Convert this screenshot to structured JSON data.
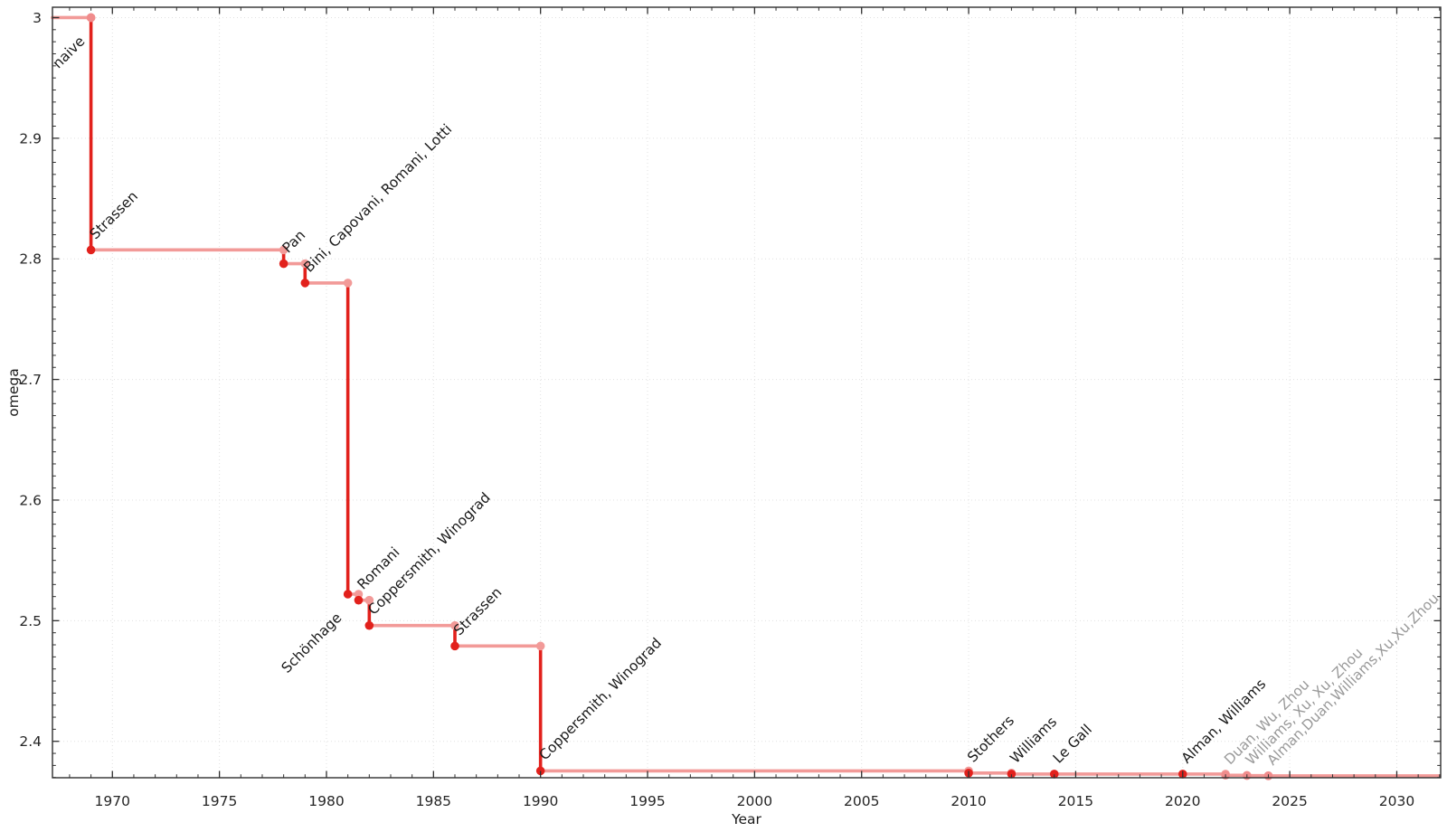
{
  "figure": {
    "background": "#ffffff"
  },
  "chart_data": {
    "type": "line",
    "step_mode": "post",
    "title": "",
    "xlabel": "Year",
    "ylabel": "omega",
    "xlim": [
      1967.2,
      2032.05
    ],
    "ylim": [
      2.3698,
      3.0086
    ],
    "grid": {
      "show": true,
      "style": "dotted",
      "on": "major"
    },
    "legend": "none",
    "x_ticks": {
      "major": [
        1970,
        1975,
        1980,
        1985,
        1990,
        1995,
        2000,
        2005,
        2010,
        2015,
        2020,
        2025,
        2030
      ],
      "major_labels": [
        "1970",
        "1975",
        "1980",
        "1985",
        "1990",
        "1995",
        "2000",
        "2005",
        "2010",
        "2015",
        "2020",
        "2025",
        "2030"
      ],
      "minor_step": 1
    },
    "y_ticks": {
      "major": [
        2.4,
        2.5,
        2.6,
        2.7,
        2.8,
        2.9,
        3.0
      ],
      "major_labels": [
        "2.4",
        "2.5",
        "2.6",
        "2.7",
        "2.8",
        "2.9",
        "3"
      ],
      "minor_step": 0.01
    },
    "records": [
      {
        "year": 1969,
        "omega": 3.0,
        "label": "naive",
        "point_style": "light",
        "label_color": "dark",
        "label_pos": "below-left"
      },
      {
        "year": 1969,
        "omega": 2.8074,
        "label": "Strassen",
        "point_style": "dark",
        "label_color": "dark",
        "label_pos": "above-right"
      },
      {
        "year": 1978,
        "omega": 2.796,
        "label": "Pan",
        "point_style": "dark",
        "label_color": "dark",
        "label_pos": "above-right"
      },
      {
        "year": 1979,
        "omega": 2.78,
        "label": "Bini, Capovani, Romani, Lotti",
        "point_style": "dark",
        "label_color": "dark",
        "label_pos": "above-right"
      },
      {
        "year": 1981,
        "omega": 2.522,
        "label": "Schönhage",
        "point_style": "dark",
        "label_color": "dark",
        "label_pos": "below-left"
      },
      {
        "year": 1981.5,
        "omega": 2.517,
        "label": "Romani",
        "point_style": "dark",
        "label_color": "dark",
        "label_pos": "above-right"
      },
      {
        "year": 1982,
        "omega": 2.496,
        "label": "Coppersmith, Winograd",
        "point_style": "dark",
        "label_color": "dark",
        "label_pos": "above-right"
      },
      {
        "year": 1986,
        "omega": 2.479,
        "label": "Strassen",
        "point_style": "dark",
        "label_color": "dark",
        "label_pos": "above-right"
      },
      {
        "year": 1990,
        "omega": 2.3755,
        "label": "Coppersmith, Winograd",
        "point_style": "dark",
        "label_color": "dark",
        "label_pos": "above-right"
      },
      {
        "year": 2010,
        "omega": 2.3737,
        "label": "Stothers",
        "point_style": "dark",
        "label_color": "dark",
        "label_pos": "above-right"
      },
      {
        "year": 2012,
        "omega": 2.37287,
        "label": "Williams",
        "point_style": "dark",
        "label_color": "dark",
        "label_pos": "above-right"
      },
      {
        "year": 2014,
        "omega": 2.372864,
        "label": "Le Gall",
        "point_style": "dark",
        "label_color": "dark",
        "label_pos": "above-right"
      },
      {
        "year": 2020,
        "omega": 2.37286,
        "label": "Alman, Williams",
        "point_style": "dark",
        "label_color": "dark",
        "label_pos": "above-right"
      },
      {
        "year": 2022,
        "omega": 2.371866,
        "label": "Duan, Wu, Zhou",
        "point_style": "light",
        "label_color": "gray",
        "label_pos": "above-right"
      },
      {
        "year": 2023,
        "omega": 2.371552,
        "label": "Williams, Xu, Xu, Zhou",
        "point_style": "light",
        "label_color": "gray",
        "label_pos": "above-right"
      },
      {
        "year": 2024,
        "omega": 2.371339,
        "label": "Alman,Duan,Williams,Xu,Xu,Zhou",
        "point_style": "light",
        "label_color": "gray",
        "label_pos": "above-right"
      }
    ],
    "colors": {
      "step_line": "#f29a98",
      "drop_line": "#e2211c",
      "point_dark": "#e2211c",
      "point_light": "#f08c8c",
      "label_dark": "#1a1a1a",
      "label_gray": "#9a9a9a",
      "grid": "#e0e0e0",
      "axis": "#2f2f2f",
      "tick_label": "#262626"
    }
  }
}
